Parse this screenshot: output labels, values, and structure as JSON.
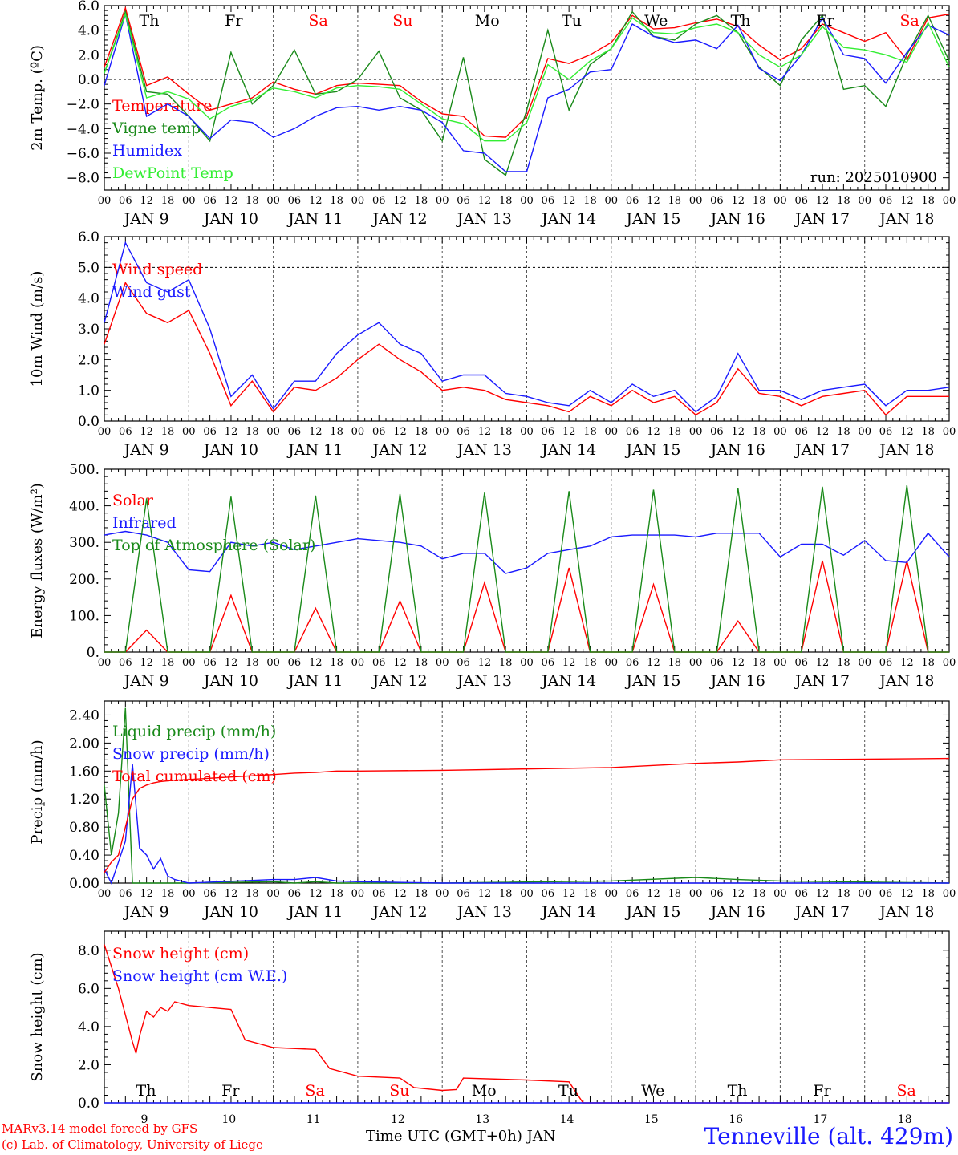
{
  "footer": {
    "model": "MARv3.14 model forced by GFS",
    "lab": "(c) Lab. of Climatology, University of Liege",
    "time_label": "Time UTC (GMT+0h) JAN",
    "station": "Tenneville (alt. 429m)"
  },
  "colors": {
    "red": "#ff0000",
    "green": "#1a8a1a",
    "blue": "#1a1aff",
    "lime": "#33ee33",
    "grid": "#555555"
  },
  "chart_data": [
    {
      "id": "temp",
      "type": "line",
      "ylabel": "2m Temp. (ºC)",
      "ylim": [
        -9,
        6
      ],
      "yticks": [
        -8,
        -6,
        -4,
        -2,
        0,
        2,
        4,
        6
      ],
      "ytick_labels": [
        "−8.0",
        "−6.0",
        "−4.0",
        "−2.0",
        "0.0",
        "2.0",
        "4.0",
        "6.0"
      ],
      "zero_line": 0,
      "annotation": "run: 2025010900",
      "weekdays": [
        "Th",
        "Fr",
        "Sa",
        "Su",
        "Mo",
        "Tu",
        "We",
        "Th",
        "Fr",
        "Sa"
      ],
      "x_hours": [
        0,
        6,
        12,
        18,
        24,
        30,
        36,
        42,
        48,
        54,
        60,
        66,
        72,
        78,
        84,
        90,
        96,
        102,
        108,
        114,
        120,
        126,
        132,
        138,
        144,
        150,
        156,
        162,
        168,
        174,
        180,
        186,
        192,
        198,
        204,
        210,
        216,
        222,
        228,
        234,
        240
      ],
      "series": [
        {
          "name": "Temperature",
          "color": "#ff0000",
          "values": [
            1.0,
            5.8,
            -0.5,
            0.2,
            -1.2,
            -2.5,
            -2.0,
            -1.5,
            -0.2,
            -0.8,
            -1.2,
            -0.5,
            -0.3,
            -0.4,
            -0.5,
            -1.8,
            -2.8,
            -3.0,
            -4.6,
            -4.7,
            -3.0,
            1.7,
            1.3,
            2.0,
            3.0,
            5.2,
            4.1,
            4.2,
            4.6,
            4.9,
            4.3,
            2.8,
            1.6,
            2.5,
            4.5,
            3.8,
            3.1,
            3.8,
            1.6,
            5.0,
            5.3
          ]
        },
        {
          "name": "Vigne temp",
          "color": "#1a8a1a",
          "values": [
            0.5,
            5.5,
            -1.0,
            -1.2,
            -3.0,
            -5.0,
            2.2,
            -2.0,
            -0.5,
            2.4,
            -1.2,
            -1.0,
            0.0,
            2.3,
            -1.5,
            -2.5,
            -5.0,
            1.8,
            -6.5,
            -7.8,
            -2.5,
            4.0,
            -2.5,
            1.2,
            2.5,
            5.5,
            3.5,
            3.2,
            4.5,
            5.2,
            3.8,
            1.0,
            -0.5,
            3.2,
            5.2,
            -0.8,
            -0.5,
            -2.2,
            2.0,
            5.2,
            1.5
          ]
        },
        {
          "name": "Humidex",
          "color": "#1a1aff",
          "values": [
            -0.5,
            5.3,
            -3.0,
            -2.0,
            -3.0,
            -4.8,
            -3.3,
            -3.5,
            -4.7,
            -4.0,
            -3.0,
            -2.3,
            -2.2,
            -2.5,
            -2.2,
            -2.5,
            -3.5,
            -5.8,
            -6.0,
            -7.5,
            -7.5,
            -1.5,
            -0.8,
            0.6,
            0.8,
            4.5,
            3.5,
            3.0,
            3.2,
            2.5,
            4.4,
            0.9,
            -0.1,
            2.0,
            5.0,
            2.0,
            1.7,
            -0.3,
            2.2,
            4.4,
            3.6
          ]
        },
        {
          "name": "DewPoint Temp",
          "color": "#33ee33",
          "values": [
            0.5,
            5.3,
            -1.5,
            -1.0,
            -1.6,
            -3.2,
            -2.2,
            -1.7,
            -0.7,
            -1.0,
            -1.5,
            -0.7,
            -0.5,
            -0.6,
            -0.8,
            -2.0,
            -3.2,
            -3.6,
            -5.0,
            -5.0,
            -3.5,
            1.2,
            0.0,
            1.5,
            2.5,
            5.0,
            3.8,
            3.7,
            4.2,
            4.5,
            3.8,
            2.0,
            1.0,
            2.0,
            4.3,
            2.6,
            2.4,
            2.0,
            1.4,
            4.6,
            1.0
          ]
        }
      ]
    },
    {
      "id": "wind",
      "type": "line",
      "ylabel": "10m Wind (m/s)",
      "ylim": [
        0,
        6
      ],
      "yticks": [
        0,
        1,
        2,
        3,
        4,
        5,
        6
      ],
      "ytick_labels": [
        "0.0",
        "1.0",
        "2.0",
        "3.0",
        "4.0",
        "5.0",
        "6.0"
      ],
      "ref_line": 5,
      "x_hours": [
        0,
        6,
        12,
        18,
        24,
        30,
        36,
        42,
        48,
        54,
        60,
        66,
        72,
        78,
        84,
        90,
        96,
        102,
        108,
        114,
        120,
        126,
        132,
        138,
        144,
        150,
        156,
        162,
        168,
        174,
        180,
        186,
        192,
        198,
        204,
        210,
        216,
        222,
        228,
        234,
        240
      ],
      "series": [
        {
          "name": "Wind speed",
          "color": "#ff0000",
          "values": [
            2.5,
            4.5,
            3.5,
            3.2,
            3.6,
            2.2,
            0.5,
            1.3,
            0.3,
            1.1,
            1.0,
            1.4,
            2.0,
            2.5,
            2.0,
            1.6,
            1.0,
            1.1,
            1.0,
            0.7,
            0.6,
            0.5,
            0.3,
            0.8,
            0.5,
            1.0,
            0.6,
            0.8,
            0.2,
            0.6,
            1.7,
            0.9,
            0.8,
            0.5,
            0.8,
            0.9,
            1.0,
            0.2,
            0.8,
            0.8,
            0.8
          ]
        },
        {
          "name": "Wind gust",
          "color": "#1a1aff",
          "values": [
            3.2,
            5.8,
            4.5,
            4.2,
            4.6,
            3.0,
            0.8,
            1.5,
            0.4,
            1.3,
            1.3,
            2.2,
            2.8,
            3.2,
            2.5,
            2.2,
            1.3,
            1.5,
            1.5,
            0.9,
            0.8,
            0.6,
            0.5,
            1.0,
            0.6,
            1.2,
            0.8,
            1.0,
            0.3,
            0.8,
            2.2,
            1.0,
            1.0,
            0.7,
            1.0,
            1.1,
            1.2,
            0.5,
            1.0,
            1.0,
            1.1
          ]
        }
      ]
    },
    {
      "id": "flux",
      "type": "line",
      "ylabel": "Energy fluxes (W/m²)",
      "ylim": [
        0,
        500
      ],
      "yticks": [
        0,
        100,
        200,
        300,
        400,
        500
      ],
      "ytick_labels": [
        "0.",
        "100.",
        "200.",
        "300.",
        "400.",
        "500."
      ],
      "x_hours": [
        0,
        6,
        12,
        18,
        24,
        30,
        36,
        42,
        48,
        54,
        60,
        66,
        72,
        78,
        84,
        90,
        96,
        102,
        108,
        114,
        120,
        126,
        132,
        138,
        144,
        150,
        156,
        162,
        168,
        174,
        180,
        186,
        192,
        198,
        204,
        210,
        216,
        222,
        228,
        234,
        240
      ],
      "series": [
        {
          "name": "Solar",
          "color": "#ff0000",
          "values": [
            0,
            0,
            60,
            0,
            0,
            0,
            155,
            0,
            0,
            0,
            120,
            0,
            0,
            0,
            140,
            0,
            0,
            0,
            190,
            0,
            0,
            0,
            230,
            0,
            0,
            0,
            185,
            0,
            0,
            0,
            85,
            0,
            0,
            0,
            250,
            0,
            0,
            0,
            250,
            0,
            0
          ]
        },
        {
          "name": "Infrared",
          "color": "#1a1aff",
          "values": [
            320,
            330,
            320,
            300,
            225,
            220,
            300,
            290,
            300,
            280,
            290,
            300,
            310,
            305,
            300,
            290,
            255,
            270,
            270,
            215,
            230,
            270,
            280,
            290,
            315,
            320,
            320,
            320,
            315,
            325,
            325,
            325,
            260,
            295,
            295,
            265,
            305,
            250,
            245,
            325,
            260
          ]
        },
        {
          "name": "Top of Atmosphere (Solar)",
          "color": "#1a8a1a",
          "values": [
            0,
            0,
            420,
            0,
            0,
            0,
            425,
            0,
            0,
            0,
            428,
            0,
            0,
            0,
            432,
            0,
            0,
            0,
            436,
            0,
            0,
            0,
            440,
            0,
            0,
            0,
            444,
            0,
            0,
            0,
            448,
            0,
            0,
            0,
            452,
            0,
            0,
            0,
            456,
            0,
            0
          ]
        }
      ]
    },
    {
      "id": "precip",
      "type": "line",
      "ylabel": "Precip (mm/h)",
      "ylim": [
        0,
        2.6
      ],
      "yticks": [
        0,
        0.4,
        0.8,
        1.2,
        1.6,
        2.0,
        2.4
      ],
      "ytick_labels": [
        "0.00",
        "0.40",
        "0.80",
        "1.20",
        "1.60",
        "2.00",
        "2.40"
      ],
      "x_hours": [
        0,
        2,
        4,
        6,
        8,
        10,
        12,
        14,
        16,
        18,
        20,
        24,
        48,
        54,
        60,
        66,
        72,
        96,
        144,
        168,
        180,
        192,
        240
      ],
      "series": [
        {
          "name": "Liquid precip (mm/h)",
          "color": "#1a8a1a",
          "values": [
            1.4,
            0.4,
            1.0,
            2.5,
            0.0,
            0.0,
            0.0,
            0.0,
            0.0,
            0.0,
            0.0,
            0.0,
            0.02,
            0.0,
            0.02,
            0.0,
            0.0,
            0.0,
            0.03,
            0.08,
            0.05,
            0.03,
            0.0
          ]
        },
        {
          "name": "Snow precip (mm/h)",
          "color": "#1a1aff",
          "values": [
            0.2,
            0.0,
            0.3,
            0.6,
            1.7,
            0.5,
            0.4,
            0.2,
            0.35,
            0.1,
            0.05,
            0.0,
            0.05,
            0.05,
            0.08,
            0.03,
            0.02,
            0.0,
            0.0,
            0.0,
            0.0,
            0.0,
            0.0
          ]
        },
        {
          "name": "Total cumulated (cm)",
          "color": "#ff0000",
          "values": [
            0.15,
            0.3,
            0.4,
            0.8,
            1.2,
            1.35,
            1.4,
            1.43,
            1.45,
            1.46,
            1.47,
            1.48,
            1.55,
            1.57,
            1.58,
            1.6,
            1.6,
            1.61,
            1.65,
            1.71,
            1.73,
            1.76,
            1.78
          ]
        }
      ]
    },
    {
      "id": "snow",
      "type": "line",
      "ylabel": "Snow height (cm)",
      "ylim": [
        0,
        9
      ],
      "yticks": [
        0,
        2,
        4,
        6,
        8
      ],
      "ytick_labels": [
        "0.0",
        "2.0",
        "4.0",
        "6.0",
        "8.0"
      ],
      "weekdays": [
        "Th",
        "Fr",
        "Sa",
        "Su",
        "Mo",
        "Tu",
        "We",
        "Th",
        "Fr",
        "Sa"
      ],
      "day_numbers": [
        "9",
        "10",
        "11",
        "12",
        "13",
        "14",
        "15",
        "16",
        "17",
        "18"
      ],
      "x_hours": [
        0,
        4,
        8,
        9,
        10,
        12,
        14,
        16,
        18,
        20,
        24,
        36,
        40,
        48,
        60,
        64,
        72,
        84,
        88,
        96,
        100,
        102,
        120,
        132,
        136,
        240
      ],
      "series": [
        {
          "name": "Snow height (cm)",
          "color": "#ff0000",
          "values": [
            8.3,
            6.0,
            3.2,
            2.6,
            3.5,
            4.8,
            4.5,
            5.0,
            4.8,
            5.3,
            5.1,
            4.9,
            3.3,
            2.9,
            2.8,
            1.8,
            1.4,
            1.3,
            0.8,
            0.65,
            0.7,
            1.3,
            1.2,
            1.1,
            0.0,
            0.0
          ]
        },
        {
          "name": "Snow height (cm W.E.)",
          "color": "#1a1aff",
          "values": [
            0,
            0,
            0,
            0,
            0,
            0,
            0,
            0,
            0,
            0,
            0,
            0,
            0,
            0,
            0,
            0,
            0,
            0,
            0,
            0,
            0,
            0,
            0,
            0,
            0,
            0
          ]
        }
      ]
    }
  ],
  "date_axis": {
    "hour_labels": [
      "00",
      "06",
      "12",
      "18"
    ],
    "end_label": "00",
    "month": "JAN",
    "days": [
      "9",
      "10",
      "11",
      "12",
      "13",
      "14",
      "15",
      "16",
      "17",
      "18"
    ]
  }
}
